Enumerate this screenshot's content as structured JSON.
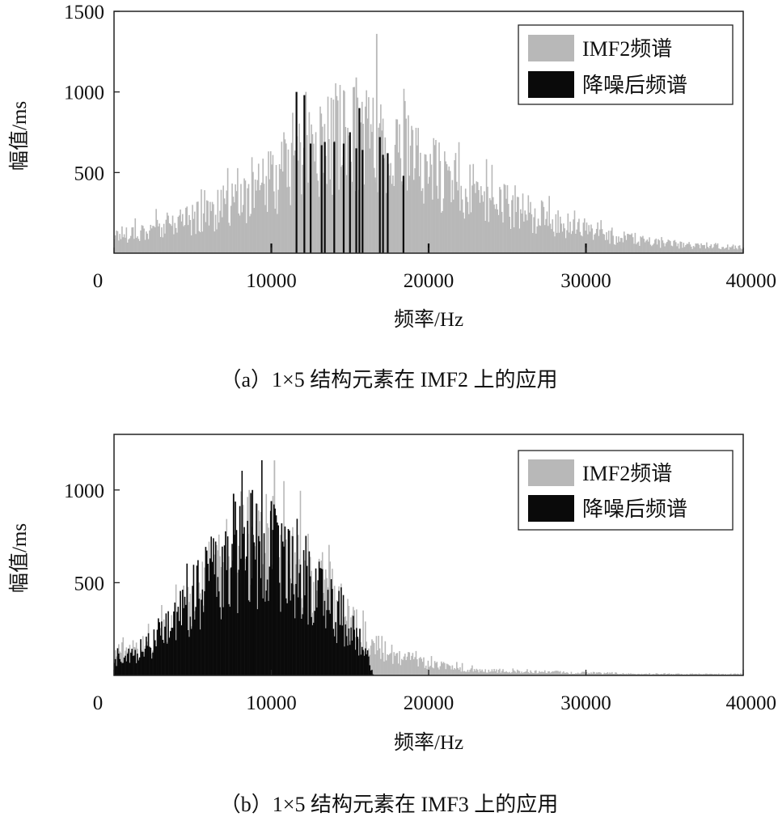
{
  "chart_data": [
    {
      "type": "bar",
      "subplot": "a",
      "xlabel": "频率/Hz",
      "ylabel": "幅值/ms",
      "xlim": [
        0,
        40000
      ],
      "ylim": [
        0,
        1500
      ],
      "xticks": [
        "0",
        "10000",
        "20000",
        "30000",
        "40000"
      ],
      "yticks": [
        "500",
        "1000",
        "1500"
      ],
      "legend": {
        "position": "top-right",
        "entries": [
          "IMF2频谱",
          "降噪后频谱"
        ]
      },
      "caption": "（a）1×5 结构元素在 IMF2 上的应用",
      "grid": false,
      "series": [
        {
          "name": "IMF2频谱",
          "color": "#b8b8b8",
          "envelope": {
            "x": [
              0,
              2000,
              4000,
              6000,
              8000,
              10000,
              11000,
              12000,
              13000,
              14000,
              15000,
              16000,
              17000,
              18000,
              19000,
              20000,
              22000,
              24000,
              26000,
              28000,
              30000,
              32000,
              34000,
              36000,
              38000,
              40000
            ],
            "y": [
              130,
              160,
              210,
              280,
              380,
              500,
              570,
              650,
              730,
              790,
              830,
              830,
              780,
              720,
              650,
              590,
              470,
              380,
              300,
              220,
              160,
              110,
              80,
              60,
              45,
              40
            ]
          },
          "peaks": [
            {
              "x": 16700,
              "y": 1360
            },
            {
              "x": 15400,
              "y": 1090
            },
            {
              "x": 12200,
              "y": 1000
            },
            {
              "x": 14600,
              "y": 1010
            }
          ]
        },
        {
          "name": "降噪后频谱",
          "color": "#0a0a0a",
          "spikes": [
            {
              "x": 10000,
              "y": 60
            },
            {
              "x": 11600,
              "y": 1000
            },
            {
              "x": 12100,
              "y": 980
            },
            {
              "x": 12500,
              "y": 680
            },
            {
              "x": 13200,
              "y": 670
            },
            {
              "x": 13400,
              "y": 690
            },
            {
              "x": 14000,
              "y": 690
            },
            {
              "x": 14600,
              "y": 680
            },
            {
              "x": 15000,
              "y": 750
            },
            {
              "x": 15400,
              "y": 650
            },
            {
              "x": 15600,
              "y": 900
            },
            {
              "x": 15800,
              "y": 640
            },
            {
              "x": 16900,
              "y": 720
            },
            {
              "x": 17100,
              "y": 610
            },
            {
              "x": 17400,
              "y": 620
            },
            {
              "x": 18400,
              "y": 480
            },
            {
              "x": 20000,
              "y": 60
            },
            {
              "x": 30000,
              "y": 60
            }
          ]
        }
      ]
    },
    {
      "type": "bar",
      "subplot": "b",
      "xlabel": "频率/Hz",
      "ylabel": "幅值/ms",
      "xlim": [
        0,
        40000
      ],
      "ylim": [
        0,
        1300
      ],
      "xticks": [
        "0",
        "10000",
        "20000",
        "30000",
        "40000"
      ],
      "yticks": [
        "500",
        "1000"
      ],
      "legend": {
        "position": "top-right",
        "entries": [
          "IMF2频谱",
          "降噪后频谱"
        ]
      },
      "caption": "（b）1×5 结构元素在 IMF3 上的应用",
      "grid": false,
      "series": [
        {
          "name": "IMF2频谱",
          "color": "#b8b8b8",
          "envelope": {
            "x": [
              0,
              2000,
              4000,
              6000,
              8000,
              10000,
              12000,
              14000,
              16000,
              17000,
              18000,
              20000,
              22000,
              24000,
              26000,
              28000,
              30000,
              34000,
              38000,
              40000
            ],
            "y": [
              130,
              170,
              330,
              560,
              760,
              780,
              640,
              420,
              230,
              170,
              120,
              70,
              45,
              30,
              25,
              20,
              15,
              10,
              8,
              8
            ]
          },
          "peaks": [
            {
              "x": 10200,
              "y": 1160
            },
            {
              "x": 8600,
              "y": 1000
            }
          ]
        },
        {
          "name": "降噪后频谱",
          "color": "#0a0a0a",
          "envelope": {
            "x": [
              0,
              2000,
              4000,
              6000,
              8000,
              10000,
              12000,
              14000,
              15000,
              16000,
              16500
            ],
            "y": [
              100,
              160,
              320,
              560,
              750,
              770,
              630,
              400,
              300,
              150,
              0
            ]
          },
          "peaks": [
            {
              "x": 7600,
              "y": 980
            },
            {
              "x": 8800,
              "y": 1000
            },
            {
              "x": 10000,
              "y": 940
            }
          ]
        }
      ]
    }
  ]
}
